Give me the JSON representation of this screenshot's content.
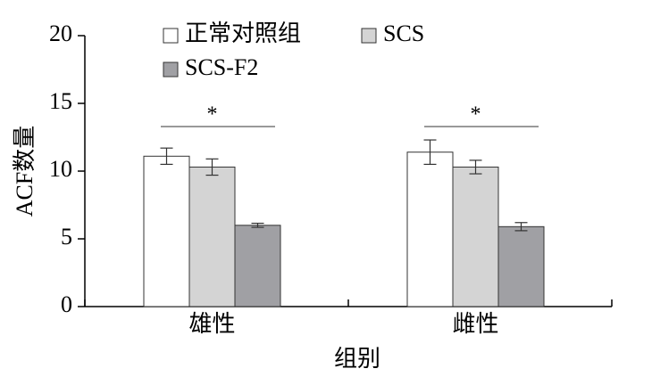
{
  "chart_data": {
    "type": "bar",
    "x_label": "组别",
    "y_label": "ACF数量",
    "categories": [
      "雄性",
      "雌性"
    ],
    "series": [
      {
        "name": "正常对照组",
        "color": "#ffffff",
        "values": [
          11.1,
          11.4
        ],
        "errors": [
          0.6,
          0.9
        ]
      },
      {
        "name": "SCS",
        "color": "#d4d4d4",
        "values": [
          10.3,
          10.3
        ],
        "errors": [
          0.6,
          0.5
        ]
      },
      {
        "name": "SCS-F2",
        "color": "#a0a0a4",
        "values": [
          6.0,
          5.9
        ],
        "errors": [
          0.15,
          0.3
        ]
      }
    ],
    "annotations": [
      "*",
      "*"
    ],
    "ylim": [
      0,
      20
    ],
    "yticks": [
      0,
      5,
      10,
      15,
      20
    ],
    "legend": "top"
  }
}
